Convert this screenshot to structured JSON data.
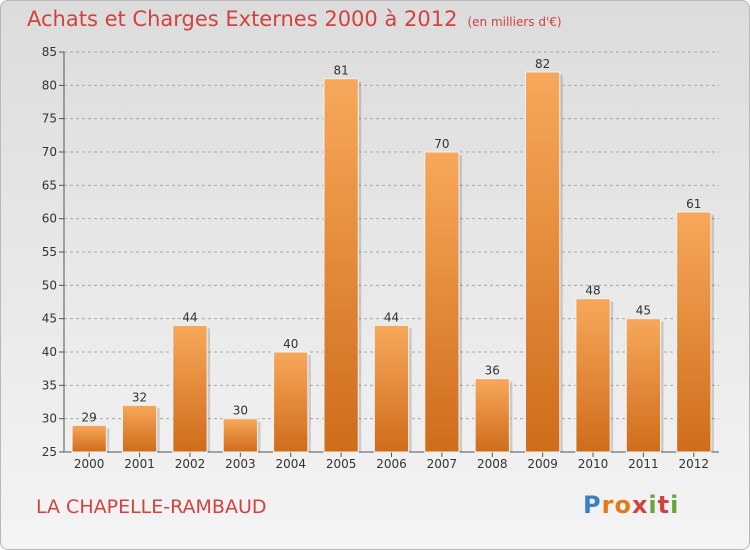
{
  "header": {
    "title": "Achats et Charges Externes 2000 à 2012",
    "unit": "(en milliers d'€)"
  },
  "footer": {
    "place": "LA CHAPELLE-RAMBAUD",
    "logo_letters": [
      "P",
      "r",
      "o",
      "x",
      "i",
      "t",
      "i"
    ]
  },
  "colors": {
    "title": "#d3423f",
    "bar_top": "#f7a85a",
    "bar_bottom": "#cf6c1a",
    "grid": "#a8a8a8",
    "logo": [
      "#3a7fc4",
      "#e07b1a",
      "#e07b1a",
      "#d3423f",
      "#67a63c",
      "#d3423f",
      "#67a63c"
    ]
  },
  "chart_data": {
    "type": "bar",
    "title": "Achats et Charges Externes 2000 à 2012",
    "xlabel": "",
    "ylabel": "",
    "categories": [
      "2000",
      "2001",
      "2002",
      "2003",
      "2004",
      "2005",
      "2006",
      "2007",
      "2008",
      "2009",
      "2010",
      "2011",
      "2012"
    ],
    "values": [
      29,
      32,
      44,
      30,
      40,
      81,
      44,
      70,
      36,
      82,
      48,
      45,
      61
    ],
    "ylim": [
      25,
      85
    ],
    "yticks": [
      25,
      30,
      35,
      40,
      45,
      50,
      55,
      60,
      65,
      70,
      75,
      80,
      85
    ],
    "grid": true,
    "legend": "none"
  }
}
